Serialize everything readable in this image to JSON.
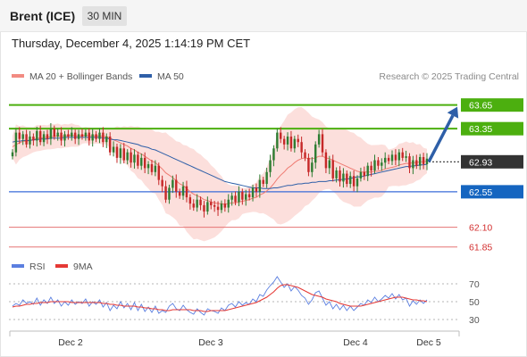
{
  "header": {
    "instrument": "Brent (ICE)",
    "timeframe": "30 MIN"
  },
  "timestamp": "Thursday, December 4, 2025 1:14:19 PM CET",
  "legend": {
    "ma20": {
      "label": "MA 20 + Bollinger Bands",
      "color": "#f28b82"
    },
    "ma50": {
      "label": "MA 50",
      "color": "#2e5fa8"
    }
  },
  "credit": "Research © 2025 Trading Central",
  "rsi_legend": {
    "rsi": {
      "label": "RSI",
      "color": "#5b7fe0"
    },
    "ma9": {
      "label": "9MA",
      "color": "#e53935"
    }
  },
  "colors": {
    "up": "#2e7d32",
    "down": "#c62828",
    "band": "#fcd9d6",
    "resistance": "#4caf0f",
    "support": "#3a6bd8",
    "pivot": "#1565c0",
    "target": "#e57373",
    "current": "#333333",
    "forecast_arrow": "#2e5fa8"
  },
  "chart_data": {
    "type": "candlestick",
    "y_range": [
      61.7,
      63.85
    ],
    "x_ticks": [
      "Dec 2",
      "Dec 3",
      "Dec 4",
      "Dec 5"
    ],
    "current_price": "62.93",
    "levels": [
      {
        "label": "63.65",
        "value": 63.65,
        "kind": "resistance"
      },
      {
        "label": "63.35",
        "value": 63.35,
        "kind": "resistance"
      },
      {
        "label": "62.55",
        "value": 62.55,
        "kind": "pivot"
      },
      {
        "label": "62.10",
        "value": 62.1,
        "kind": "target"
      },
      {
        "label": "61.85",
        "value": 61.85,
        "kind": "target"
      }
    ],
    "forecast": {
      "from": 62.93,
      "to": 63.65
    },
    "close": [
      63.05,
      63.3,
      63.22,
      63.28,
      63.15,
      63.25,
      63.2,
      63.32,
      63.18,
      63.28,
      63.22,
      63.35,
      63.25,
      63.3,
      63.2,
      63.28,
      63.25,
      63.3,
      63.22,
      63.28,
      63.25,
      63.3,
      63.2,
      63.28,
      63.22,
      63.3,
      63.18,
      63.25,
      63.05,
      63.12,
      62.98,
      63.1,
      62.95,
      63.05,
      62.92,
      63.02,
      62.88,
      62.98,
      62.85,
      62.9,
      62.8,
      62.88,
      62.7,
      62.62,
      62.45,
      62.6,
      62.7,
      62.55,
      62.5,
      62.62,
      62.48,
      62.4,
      62.35,
      62.45,
      62.38,
      62.3,
      62.42,
      62.38,
      62.36,
      62.32,
      62.4,
      62.35,
      62.45,
      62.5,
      62.42,
      62.55,
      62.45,
      62.52,
      62.48,
      62.6,
      62.55,
      62.7,
      62.65,
      62.8,
      62.95,
      63.1,
      63.3,
      63.22,
      63.15,
      63.25,
      63.1,
      63.22,
      63.18,
      63.05,
      62.98,
      62.8,
      62.92,
      63.15,
      63.28,
      63.05,
      62.85,
      62.95,
      62.72,
      62.82,
      62.68,
      62.78,
      62.65,
      62.75,
      62.62,
      62.72,
      62.8,
      62.75,
      62.88,
      62.82,
      62.95,
      62.88,
      62.92,
      62.98,
      62.94,
      63.02,
      62.95,
      63.05,
      62.98,
      63.0,
      62.85,
      62.95,
      62.88,
      62.99,
      62.9,
      62.97
    ],
    "ma20": [
      63.12,
      63.15,
      63.17,
      63.19,
      63.19,
      63.2,
      63.21,
      63.23,
      63.23,
      63.24,
      63.24,
      63.25,
      63.25,
      63.26,
      63.25,
      63.26,
      63.26,
      63.27,
      63.26,
      63.26,
      63.26,
      63.27,
      63.26,
      63.26,
      63.26,
      63.26,
      63.25,
      63.25,
      63.23,
      63.21,
      63.19,
      63.17,
      63.15,
      63.13,
      63.1,
      63.08,
      63.05,
      63.03,
      63.0,
      62.97,
      62.94,
      62.92,
      62.88,
      62.84,
      62.79,
      62.76,
      62.73,
      62.69,
      62.65,
      62.63,
      62.59,
      62.55,
      62.52,
      62.5,
      62.48,
      62.45,
      62.44,
      62.42,
      62.41,
      62.4,
      62.4,
      62.39,
      62.4,
      62.41,
      62.41,
      62.42,
      62.43,
      62.44,
      62.45,
      62.47,
      62.48,
      62.51,
      62.53,
      62.56,
      62.6,
      62.65,
      62.71,
      62.76,
      62.8,
      62.85,
      62.88,
      62.92,
      62.95,
      62.97,
      62.98,
      62.97,
      62.97,
      62.98,
      63.0,
      63.0,
      62.98,
      62.97,
      62.95,
      62.93,
      62.91,
      62.89,
      62.87,
      62.85,
      62.83,
      62.81,
      62.8,
      62.8,
      62.8,
      62.8,
      62.81,
      62.81,
      62.82,
      62.84,
      62.85,
      62.86,
      62.87,
      62.89,
      62.9,
      62.91,
      62.91,
      62.92,
      62.92,
      62.93,
      62.93,
      62.94
    ],
    "ma50": [
      63.18,
      63.19,
      63.19,
      63.2,
      63.2,
      63.2,
      63.21,
      63.21,
      63.22,
      63.22,
      63.22,
      63.23,
      63.23,
      63.23,
      63.23,
      63.24,
      63.24,
      63.24,
      63.24,
      63.24,
      63.24,
      63.24,
      63.24,
      63.24,
      63.24,
      63.24,
      63.23,
      63.23,
      63.22,
      63.21,
      63.21,
      63.2,
      63.19,
      63.18,
      63.17,
      63.16,
      63.15,
      63.13,
      63.12,
      63.11,
      63.09,
      63.08,
      63.06,
      63.04,
      63.02,
      63.0,
      62.98,
      62.96,
      62.94,
      62.92,
      62.9,
      62.88,
      62.86,
      62.84,
      62.82,
      62.8,
      62.78,
      62.76,
      62.74,
      62.72,
      62.7,
      62.68,
      62.67,
      62.66,
      62.65,
      62.64,
      62.63,
      62.62,
      62.61,
      62.6,
      62.6,
      62.6,
      62.59,
      62.59,
      62.59,
      62.6,
      62.6,
      62.61,
      62.62,
      62.63,
      62.63,
      62.64,
      62.65,
      62.65,
      62.66,
      62.66,
      62.67,
      62.67,
      62.68,
      62.68,
      62.68,
      62.69,
      62.69,
      62.7,
      62.7,
      62.71,
      62.71,
      62.72,
      62.73,
      62.74,
      62.74,
      62.75,
      62.76,
      62.77,
      62.78,
      62.79,
      62.8,
      62.81,
      62.82,
      62.83,
      62.84,
      62.85,
      62.86,
      62.87,
      62.87,
      62.88,
      62.88,
      62.89,
      62.89,
      62.9
    ],
    "rsi_ticks": [
      70,
      50,
      30
    ],
    "rsi_range": [
      20,
      80
    ],
    "rsi": [
      45,
      48,
      46,
      52,
      48,
      50,
      47,
      54,
      46,
      52,
      48,
      55,
      48,
      52,
      45,
      50,
      46,
      52,
      47,
      50,
      48,
      53,
      45,
      50,
      47,
      52,
      44,
      49,
      40,
      46,
      42,
      50,
      43,
      48,
      41,
      49,
      40,
      47,
      39,
      44,
      38,
      45,
      37,
      40,
      38,
      45,
      48,
      42,
      40,
      46,
      41,
      38,
      36,
      42,
      38,
      35,
      42,
      40,
      39,
      37,
      43,
      40,
      46,
      48,
      44,
      50,
      46,
      49,
      47,
      53,
      50,
      58,
      56,
      63,
      68,
      72,
      78,
      72,
      66,
      70,
      62,
      67,
      63,
      57,
      54,
      47,
      52,
      60,
      62,
      54,
      46,
      50,
      42,
      47,
      41,
      46,
      40,
      45,
      40,
      44,
      48,
      46,
      52,
      49,
      55,
      50,
      53,
      57,
      54,
      59,
      53,
      58,
      52,
      54,
      45,
      51,
      47,
      52,
      48,
      52
    ],
    "rsi_ma9": [
      44,
      45,
      45,
      46,
      47,
      47,
      48,
      48,
      49,
      49,
      49,
      50,
      50,
      50,
      50,
      50,
      50,
      49,
      49,
      49,
      49,
      49,
      49,
      49,
      49,
      49,
      48,
      48,
      47,
      47,
      46,
      46,
      45,
      45,
      45,
      45,
      44,
      44,
      43,
      43,
      42,
      42,
      41,
      41,
      40,
      40,
      41,
      41,
      41,
      41,
      41,
      41,
      40,
      40,
      40,
      39,
      39,
      40,
      40,
      40,
      40,
      40,
      41,
      42,
      43,
      44,
      45,
      46,
      47,
      48,
      49,
      51,
      53,
      55,
      58,
      61,
      65,
      68,
      69,
      69,
      68,
      67,
      66,
      64,
      62,
      60,
      58,
      57,
      56,
      55,
      53,
      52,
      51,
      50,
      48,
      47,
      46,
      45,
      45,
      45,
      45,
      46,
      47,
      48,
      49,
      50,
      51,
      52,
      53,
      54,
      55,
      55,
      55,
      54,
      53,
      52,
      52,
      51,
      51,
      50
    ]
  }
}
